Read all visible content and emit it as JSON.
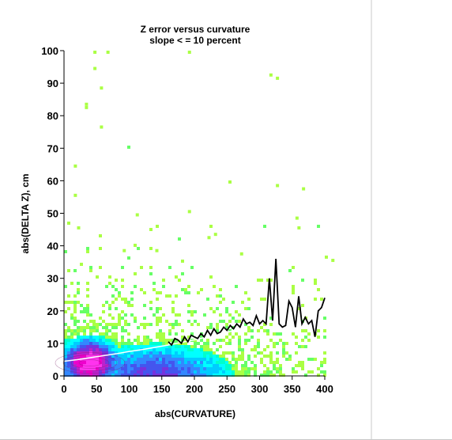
{
  "chart_data": {
    "type": "heatmap",
    "title_lines": [
      "Z error versus curvature",
      "slope < = 10 percent"
    ],
    "xlabel": "abs(CURVATURE)",
    "ylabel": "abs(DELTA Z), cm",
    "xlim": [
      0,
      400
    ],
    "ylim": [
      0,
      100
    ],
    "x_ticks": [
      0,
      50,
      100,
      150,
      200,
      250,
      300,
      350,
      400
    ],
    "y_ticks": [
      0,
      10,
      20,
      30,
      40,
      50,
      60,
      70,
      80,
      90,
      100
    ],
    "grid": false,
    "legend": "none",
    "density_colors": [
      "#aaff44",
      "#66ff66",
      "#33ff99",
      "#00ffcc",
      "#00ffff",
      "#00ccff",
      "#3388ff",
      "#4455ee",
      "#7733dd",
      "#bb22cc",
      "#ee00cc",
      "#ff33ee"
    ],
    "density_core": {
      "x": 40,
      "y": 4
    },
    "trend_line": {
      "x": [
        0,
        20,
        40,
        60,
        80,
        100,
        120,
        140,
        160,
        180,
        200,
        220,
        240,
        260,
        280
      ],
      "y": [
        4.5,
        5.0,
        5.6,
        6.2,
        6.8,
        7.5,
        8.1,
        8.8,
        9.5,
        10.3,
        11.1,
        12.0,
        12.9,
        13.9,
        14.8
      ]
    },
    "mean_line": {
      "x": [
        160,
        165,
        170,
        175,
        180,
        185,
        190,
        195,
        200,
        205,
        210,
        215,
        220,
        225,
        230,
        235,
        240,
        245,
        250,
        255,
        260,
        265,
        270,
        275,
        280,
        285,
        290,
        295,
        300,
        305,
        310,
        315,
        320,
        325,
        330,
        335,
        340,
        345,
        350,
        355,
        360,
        365,
        370,
        375,
        380,
        385,
        390,
        395,
        400
      ],
      "y": [
        10.5,
        9.5,
        11.5,
        11,
        10,
        12,
        10.5,
        12.5,
        12,
        11.5,
        13,
        12,
        14,
        12.5,
        14.5,
        13,
        13.5,
        15,
        14,
        15.5,
        14.5,
        16,
        15,
        17.5,
        16,
        16.5,
        15.5,
        18.5,
        16,
        17,
        16,
        30,
        17,
        36,
        16,
        15,
        15.5,
        23,
        21,
        15,
        24.5,
        16,
        18,
        16,
        17,
        12,
        20,
        21,
        24
      ]
    }
  }
}
